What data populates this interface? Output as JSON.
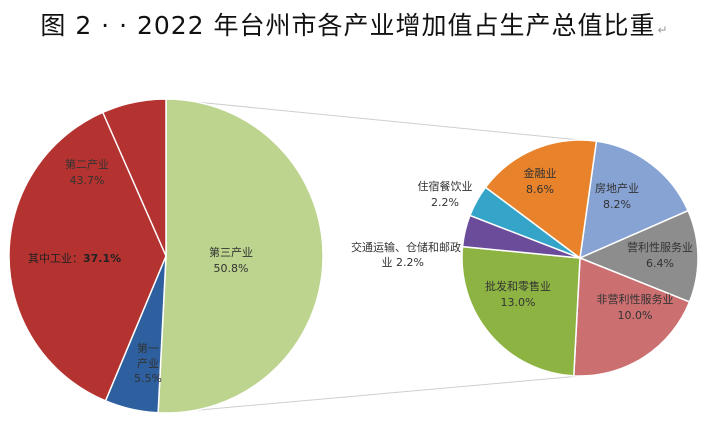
{
  "title": "图 2 · · 2022 年台州市各产业增加值占生产总值比重",
  "title_mark": "↵",
  "colors": {
    "primary": "#2e5f9e",
    "secondary": "#b4322f",
    "tertiary": "#bcd48e",
    "finance": "#e8832b",
    "realestate": "#86a3d3",
    "profit_services": "#8d8d8d",
    "nonprofit_services": "#cb6f70",
    "wholesale": "#8db443",
    "transport": "#6b4c9a",
    "hospitality": "#34a5c9"
  },
  "chart_data": [
    {
      "type": "pie",
      "slices": [
        {
          "key": "tertiary",
          "label": "第三产业",
          "value": 50.8,
          "value_text": "50.8%"
        },
        {
          "key": "primary",
          "label_lines": [
            "第一",
            "产业"
          ],
          "value": 5.5,
          "value_text": "5.5%"
        },
        {
          "key": "secondary",
          "label": "第二产业",
          "value": 43.7,
          "value_text": "43.7%"
        }
      ],
      "sub_slice": {
        "label": "其中工业：",
        "value": 37.1,
        "value_text": "37.1%"
      }
    },
    {
      "type": "pie",
      "slices": [
        {
          "key": "realestate",
          "label": "房地产业",
          "value": 8.2,
          "value_text": "8.2%"
        },
        {
          "key": "profit_services",
          "label": "营利性服务业",
          "value": 6.4,
          "value_text": "6.4%"
        },
        {
          "key": "nonprofit_services",
          "label": "非营利性服务业",
          "value": 10.0,
          "value_text": "10.0%"
        },
        {
          "key": "wholesale",
          "label": "批发和零售业",
          "value": 13.0,
          "value_text": "13.0%"
        },
        {
          "key": "transport",
          "label_lines": [
            "交通运输、仓储和邮政",
            "业 2.2%"
          ],
          "value": 2.2,
          "value_text": ""
        },
        {
          "key": "hospitality",
          "label": "住宿餐饮业",
          "value": 2.2,
          "value_text": "2.2%"
        },
        {
          "key": "finance",
          "label": "金融业",
          "value": 8.6,
          "value_text": "8.6%"
        }
      ]
    }
  ]
}
